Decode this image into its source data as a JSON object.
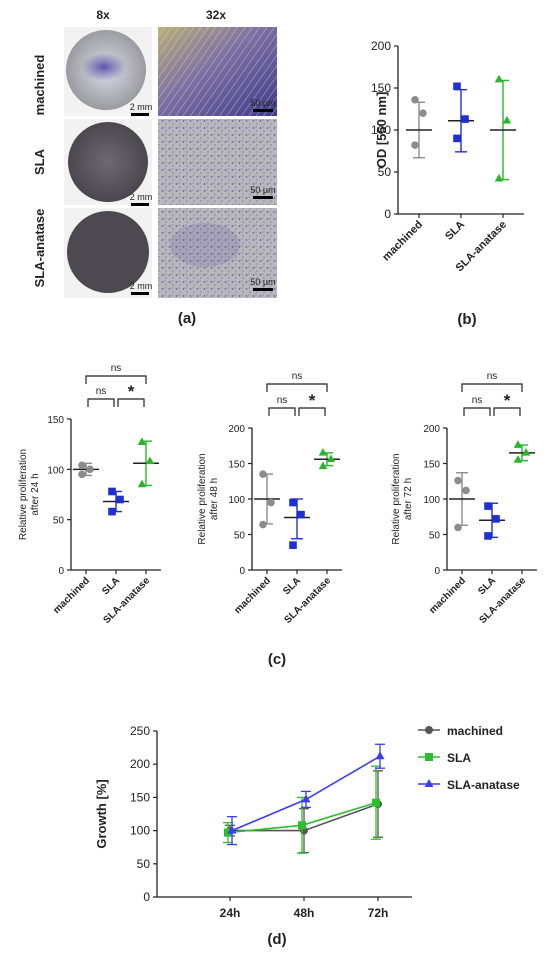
{
  "panel_a": {
    "col_labels": [
      "8x",
      "32x"
    ],
    "row_labels": [
      "machined",
      "SLA",
      "SLA-anatase"
    ],
    "scale_8x": "2 mm",
    "scale_32x": "50 µm",
    "caption": "(a)"
  },
  "colors": {
    "machined_dots": "#8c8c8c",
    "SLA_dots": "#1f2fd0",
    "anatase_dots": "#2cb52c",
    "line_machined": "#555555",
    "line_SLA": "#2cbf2c",
    "line_anatase": "#3c3cf0",
    "stain": "#5a4aa0"
  },
  "chart_data": [
    {
      "id": "b",
      "type": "scatter",
      "caption": "(b)",
      "ylabel": "OD [550 nm]",
      "xlabel": "",
      "categories": [
        "machined",
        "SLA",
        "SLA-anatase"
      ],
      "ylim": [
        0,
        200
      ],
      "yticks": [
        0,
        50,
        100,
        150,
        200
      ],
      "series": [
        {
          "category": "machined",
          "points": [
            136,
            120,
            82
          ],
          "mean": 100,
          "sd_low": 67,
          "sd_high": 133
        },
        {
          "category": "SLA",
          "points": [
            152,
            113,
            90
          ],
          "mean": 111,
          "sd_low": 74,
          "sd_high": 148
        },
        {
          "category": "SLA-anatase",
          "points": [
            160,
            111,
            42
          ],
          "mean": 100,
          "sd_low": 41,
          "sd_high": 159
        }
      ]
    },
    {
      "id": "c1",
      "type": "scatter",
      "ylabel": [
        "Relative proliferation",
        "after 24 h"
      ],
      "categories": [
        "machined",
        "SLA",
        "SLA-anatase"
      ],
      "ylim": [
        0,
        150
      ],
      "yticks": [
        0,
        50,
        100,
        150
      ],
      "series": [
        {
          "category": "machined",
          "points": [
            104,
            100,
            95
          ],
          "mean": 100,
          "sd_low": 94,
          "sd_high": 106
        },
        {
          "category": "SLA",
          "points": [
            78,
            70,
            58
          ],
          "mean": 68,
          "sd_low": 58,
          "sd_high": 78
        },
        {
          "category": "SLA-anatase",
          "points": [
            127,
            108,
            85
          ],
          "mean": 106,
          "sd_low": 84,
          "sd_high": 128
        }
      ],
      "annotations": [
        {
          "from": "machined",
          "to": "SLA",
          "label": "ns",
          "level": 0
        },
        {
          "from": "SLA",
          "to": "SLA-anatase",
          "label": "*",
          "level": 0
        },
        {
          "from": "machined",
          "to": "SLA-anatase",
          "label": "ns",
          "level": 1
        }
      ]
    },
    {
      "id": "c2",
      "type": "scatter",
      "ylabel": [
        "Relative proliferation",
        "after 48 h"
      ],
      "categories": [
        "machined",
        "SLA",
        "SLA-anatase"
      ],
      "ylim": [
        0,
        200
      ],
      "yticks": [
        0,
        50,
        100,
        150,
        200
      ],
      "series": [
        {
          "category": "machined",
          "points": [
            135,
            95,
            64
          ],
          "mean": 100,
          "sd_low": 65,
          "sd_high": 135
        },
        {
          "category": "SLA",
          "points": [
            95,
            78,
            35
          ],
          "mean": 74,
          "sd_low": 44,
          "sd_high": 100
        },
        {
          "category": "SLA-anatase",
          "points": [
            165,
            156,
            146
          ],
          "mean": 156,
          "sd_low": 147,
          "sd_high": 165
        }
      ],
      "annotations": [
        {
          "from": "machined",
          "to": "SLA",
          "label": "ns",
          "level": 0
        },
        {
          "from": "SLA",
          "to": "SLA-anatase",
          "label": "*",
          "level": 0
        },
        {
          "from": "machined",
          "to": "SLA-anatase",
          "label": "ns",
          "level": 1
        }
      ]
    },
    {
      "id": "c3",
      "type": "scatter",
      "ylabel": [
        "Relative proliferation",
        "after 72 h"
      ],
      "categories": [
        "machined",
        "SLA",
        "SLA-anatase"
      ],
      "ylim": [
        0,
        200
      ],
      "yticks": [
        0,
        50,
        100,
        150,
        200
      ],
      "series": [
        {
          "category": "machined",
          "points": [
            126,
            112,
            60
          ],
          "mean": 100,
          "sd_low": 63,
          "sd_high": 137
        },
        {
          "category": "SLA",
          "points": [
            90,
            72,
            48
          ],
          "mean": 70,
          "sd_low": 46,
          "sd_high": 94
        },
        {
          "category": "SLA-anatase",
          "points": [
            176,
            165,
            155
          ],
          "mean": 165,
          "sd_low": 154,
          "sd_high": 176
        }
      ],
      "annotations": [
        {
          "from": "machined",
          "to": "SLA",
          "label": "ns",
          "level": 0
        },
        {
          "from": "SLA",
          "to": "SLA-anatase",
          "label": "*",
          "level": 0
        },
        {
          "from": "machined",
          "to": "SLA-anatase",
          "label": "ns",
          "level": 1
        }
      ]
    },
    {
      "id": "d",
      "type": "line",
      "caption": "(d)",
      "ylabel": "Growth [%]",
      "xlabel": "",
      "x": [
        "24h",
        "48h",
        "72h"
      ],
      "ylim": [
        0,
        250
      ],
      "yticks": [
        0,
        50,
        100,
        150,
        200,
        250
      ],
      "legend": "right",
      "series": [
        {
          "name": "machined",
          "values": [
            100,
            100,
            140
          ],
          "err": [
            8,
            33,
            50
          ],
          "marker": "circle"
        },
        {
          "name": "SLA",
          "values": [
            97,
            108,
            142
          ],
          "err": [
            15,
            42,
            55
          ],
          "marker": "square"
        },
        {
          "name": "SLA-anatase",
          "values": [
            100,
            147,
            212
          ],
          "err": [
            21,
            12,
            18
          ],
          "marker": "triangle"
        }
      ]
    }
  ],
  "captions": {
    "c": "(c)"
  }
}
